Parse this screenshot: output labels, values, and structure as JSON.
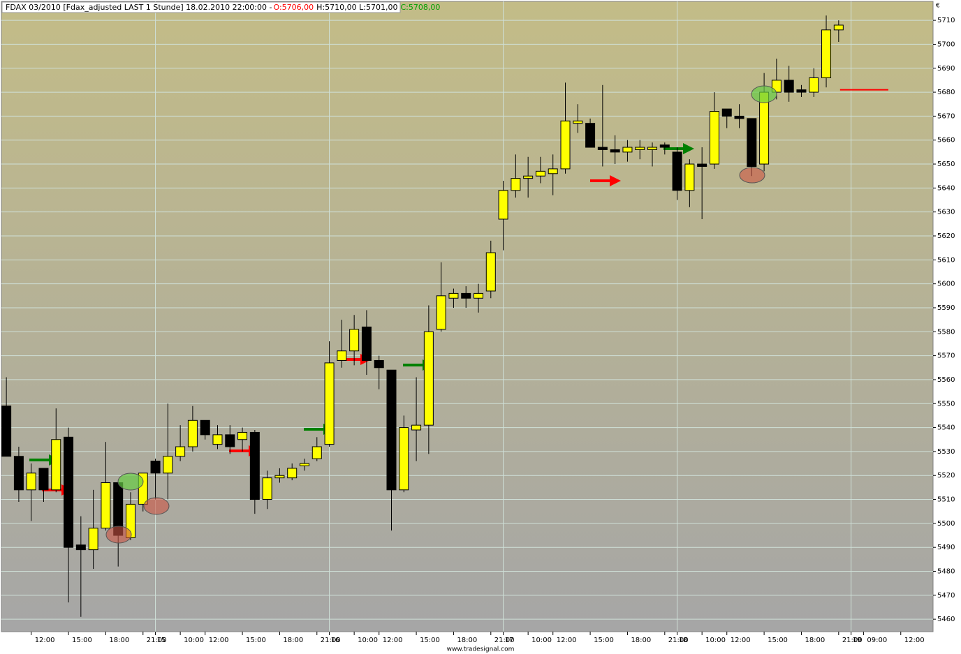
{
  "chart_data": {
    "type": "candlestick",
    "title": "FDAX 03/2010 [Fdax_adjusted LAST 1 Stunde] 18.02.2010 22:00:00 - ",
    "title_open": "O:5706,00",
    "title_hl": "H:5710,00 L:5701,00",
    "title_close": "C:5708,00",
    "currency": "€",
    "footer": "www.tradesignal.com",
    "up_color": "#ffff00",
    "down_color": "#000000",
    "level_line": 5681,
    "level_color": "#ff0000",
    "grid": true,
    "open": [
      5549,
      5528,
      5514,
      5523,
      5514,
      5536,
      5491,
      5489,
      5498,
      5517,
      5494,
      5508,
      5526,
      5521,
      5528,
      5532,
      5543,
      5533,
      5537,
      5535,
      5538,
      5510,
      5519,
      5519,
      5524,
      5527,
      5533,
      5568,
      5572,
      5582,
      5568,
      5564,
      5514,
      5539,
      5541,
      5581,
      5594,
      5596,
      5594,
      5597,
      5627,
      5639,
      5644,
      5645,
      5646,
      5648,
      5667,
      5667,
      5657,
      5656,
      5655,
      5656,
      5656,
      5658,
      5655,
      5639,
      5650,
      5650,
      5673,
      5670,
      5669,
      5650,
      5680,
      5685,
      5681,
      5680,
      5686,
      5706
    ],
    "high": [
      5561,
      5532,
      5525,
      5523,
      5548,
      5540,
      5503,
      5514,
      5534,
      5517,
      5513,
      5521,
      5527,
      5550,
      5541,
      5549,
      5543,
      5541,
      5541,
      5540,
      5539,
      5522,
      5523,
      5525,
      5527,
      5536,
      5576,
      5585,
      5587,
      5589,
      5570,
      5564,
      5545,
      5561,
      5591,
      5609,
      5598,
      5599,
      5600,
      5618,
      5643,
      5654,
      5653,
      5653,
      5654,
      5684,
      5675,
      5669,
      5683,
      5662,
      5660,
      5660,
      5659,
      5659,
      5657,
      5652,
      5657,
      5680,
      5673,
      5675,
      5669,
      5688,
      5694,
      5691,
      5683,
      5690,
      5712,
      5710
    ],
    "low": [
      5528,
      5509,
      5501,
      5509,
      5513,
      5467,
      5461,
      5481,
      5497,
      5482,
      5493,
      5505,
      5510,
      5510,
      5526,
      5530,
      5535,
      5531,
      5529,
      5530,
      5504,
      5506,
      5517,
      5518,
      5522,
      5526,
      5532,
      5565,
      5566,
      5562,
      5556,
      5497,
      5513,
      5526,
      5529,
      5580,
      5590,
      5590,
      5588,
      5594,
      5614,
      5636,
      5636,
      5642,
      5637,
      5646,
      5663,
      5657,
      5649,
      5650,
      5651,
      5652,
      5649,
      5654,
      5635,
      5632,
      5627,
      5648,
      5665,
      5665,
      5645,
      5647,
      5677,
      5676,
      5678,
      5678,
      5682,
      5701
    ],
    "close": [
      5528,
      5514,
      5521,
      5514,
      5535,
      5490,
      5489,
      5498,
      5517,
      5495,
      5508,
      5521,
      5521,
      5528,
      5532,
      5543,
      5537,
      5537,
      5532,
      5538,
      5510,
      5519,
      5520,
      5523,
      5525,
      5532,
      5567,
      5572,
      5581,
      5568,
      5565,
      5514,
      5540,
      5541,
      5580,
      5595,
      5596,
      5594,
      5596,
      5613,
      5639,
      5644,
      5645,
      5647,
      5648,
      5668,
      5668,
      5657,
      5656,
      5655,
      5657,
      5657,
      5657,
      5657,
      5639,
      5650,
      5649,
      5672,
      5670,
      5669,
      5649,
      5680,
      5685,
      5680,
      5680,
      5686,
      5706,
      5708
    ],
    "xlim": [
      -0.4,
      74.6
    ],
    "xticks": [
      {
        "value": 2,
        "label": "12:00"
      },
      {
        "value": 5,
        "label": "15:00"
      },
      {
        "value": 8,
        "label": "18:00"
      },
      {
        "value": 11,
        "label": "21:00"
      },
      {
        "value": 12,
        "label": "15"
      },
      {
        "value": 14,
        "label": "10:00"
      },
      {
        "value": 16,
        "label": "12:00"
      },
      {
        "value": 19,
        "label": "15:00"
      },
      {
        "value": 22,
        "label": "18:00"
      },
      {
        "value": 25,
        "label": "21:00"
      },
      {
        "value": 26,
        "label": "16"
      },
      {
        "value": 28,
        "label": "10:00"
      },
      {
        "value": 30,
        "label": "12:00"
      },
      {
        "value": 33,
        "label": "15:00"
      },
      {
        "value": 36,
        "label": "18:00"
      },
      {
        "value": 39,
        "label": "21:00"
      },
      {
        "value": 40,
        "label": "17"
      },
      {
        "value": 42,
        "label": "10:00"
      },
      {
        "value": 44,
        "label": "12:00"
      },
      {
        "value": 47,
        "label": "15:00"
      },
      {
        "value": 50,
        "label": "18:00"
      },
      {
        "value": 53,
        "label": "21:00"
      },
      {
        "value": 54,
        "label": "18"
      },
      {
        "value": 56,
        "label": "10:00"
      },
      {
        "value": 58,
        "label": "12:00"
      },
      {
        "value": 61,
        "label": "15:00"
      },
      {
        "value": 64,
        "label": "18:00"
      },
      {
        "value": 67,
        "label": "21:00"
      },
      {
        "value": 68,
        "label": "19"
      },
      {
        "value": 69,
        "label": "09:00"
      },
      {
        "value": 72,
        "label": "12:00"
      }
    ],
    "ylim": [
      5454.8,
      5717.9
    ],
    "yticks": [
      5460,
      5470,
      5480,
      5490,
      5500,
      5510,
      5520,
      5530,
      5540,
      5550,
      5560,
      5570,
      5580,
      5590,
      5600,
      5610,
      5620,
      5630,
      5640,
      5650,
      5660,
      5670,
      5680,
      5690,
      5700,
      5710
    ]
  }
}
